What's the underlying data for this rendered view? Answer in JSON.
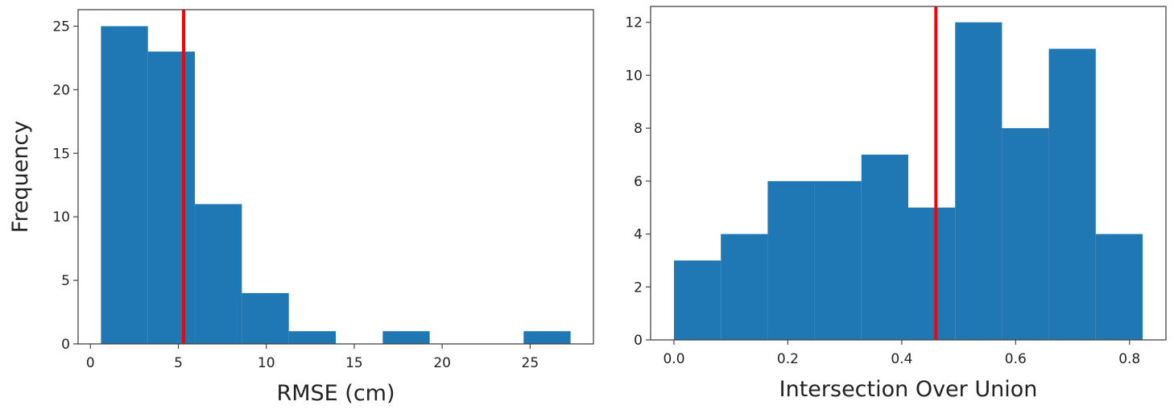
{
  "chart_data": [
    {
      "type": "bar",
      "subtype": "histogram",
      "bin_edges": [
        0.6,
        3.27,
        5.94,
        8.61,
        11.28,
        13.95,
        16.62,
        19.29,
        21.96,
        24.63,
        27.3
      ],
      "values": [
        25,
        23,
        11,
        4,
        1,
        0,
        1,
        0,
        0,
        1
      ],
      "bar_color": "#1f77b4",
      "vline": {
        "x": 5.3,
        "color": "#ff0000"
      },
      "xlabel": "RMSE (cm)",
      "ylabel": "Frequency",
      "xlim": [
        -0.7,
        28.6
      ],
      "ylim": [
        0,
        26.3
      ],
      "xticks": [
        0,
        5,
        10,
        15,
        20,
        25
      ],
      "yticks": [
        0,
        5,
        10,
        15,
        20,
        25
      ],
      "grid": false
    },
    {
      "type": "bar",
      "subtype": "histogram",
      "bin_edges": [
        0.0,
        0.0823,
        0.1646,
        0.2469,
        0.3292,
        0.4115,
        0.4938,
        0.5761,
        0.6584,
        0.7407,
        0.823
      ],
      "values": [
        3,
        4,
        6,
        6,
        7,
        5,
        12,
        8,
        11,
        4
      ],
      "bar_color": "#1f77b4",
      "vline": {
        "x": 0.46,
        "color": "#ff0000"
      },
      "xlabel": "Intersection Over Union",
      "ylabel": "",
      "xlim": [
        -0.041,
        0.864
      ],
      "ylim": [
        0,
        12.6
      ],
      "xticks": [
        "0.0",
        "0.2",
        "0.4",
        "0.6",
        "0.8"
      ],
      "yticks": [
        0,
        2,
        4,
        6,
        8,
        10,
        12
      ],
      "grid": false
    }
  ]
}
